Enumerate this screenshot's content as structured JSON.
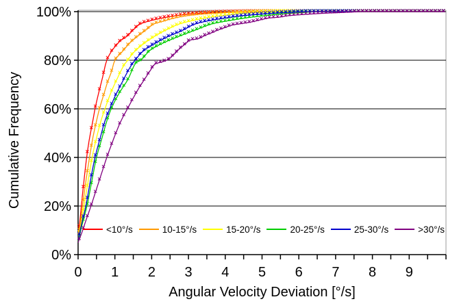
{
  "chart_data": {
    "type": "line",
    "title": "",
    "xlabel": "Angular Velocity Deviation [°/s]",
    "ylabel": "Cumulative Frequency",
    "xlim": [
      0,
      10
    ],
    "ylim": [
      0,
      100
    ],
    "x_tick_values": [
      0,
      1,
      2,
      3,
      4,
      5,
      6,
      7,
      8,
      9
    ],
    "x_minor_tick_step": 0.5,
    "y_tick_values": [
      0,
      20,
      40,
      60,
      80,
      100
    ],
    "y_tick_labels": [
      "0%",
      "20%",
      "40%",
      "60%",
      "80%",
      "100%"
    ],
    "grid": "horizontal-only",
    "legend_position": "inside-bottom",
    "marker": "x",
    "marker_step": 0.11,
    "axis_color": "#000000",
    "gridline_color": "#000000",
    "plot_border_color": "#9a9a9a",
    "series": [
      {
        "name": "<10°/s",
        "color": "#ff0000",
        "points": [
          [
            0,
            8
          ],
          [
            0.05,
            14
          ],
          [
            0.1,
            22
          ],
          [
            0.15,
            29
          ],
          [
            0.2,
            36
          ],
          [
            0.25,
            42
          ],
          [
            0.3,
            47
          ],
          [
            0.4,
            55
          ],
          [
            0.46,
            60
          ],
          [
            0.55,
            66
          ],
          [
            0.65,
            72
          ],
          [
            0.78,
            80
          ],
          [
            0.9,
            83.5
          ],
          [
            1.0,
            85.5
          ],
          [
            1.15,
            88
          ],
          [
            1.34,
            90
          ],
          [
            1.5,
            92.5
          ],
          [
            1.7,
            95
          ],
          [
            1.9,
            96
          ],
          [
            2.1,
            96.8
          ],
          [
            2.4,
            97.7
          ],
          [
            2.7,
            98.4
          ],
          [
            3.0,
            99
          ],
          [
            3.4,
            99.4
          ],
          [
            3.8,
            99.7
          ],
          [
            4.3,
            99.9
          ],
          [
            4.7,
            100
          ],
          [
            10,
            100
          ]
        ]
      },
      {
        "name": "10-15°/s",
        "color": "#ff9900",
        "points": [
          [
            0,
            7
          ],
          [
            0.06,
            13
          ],
          [
            0.12,
            20
          ],
          [
            0.2,
            29
          ],
          [
            0.3,
            39
          ],
          [
            0.4,
            48
          ],
          [
            0.5,
            55
          ],
          [
            0.58,
            60
          ],
          [
            0.7,
            66
          ],
          [
            0.8,
            71
          ],
          [
            0.9,
            75
          ],
          [
            1.0,
            80
          ],
          [
            1.2,
            83.5
          ],
          [
            1.4,
            87
          ],
          [
            1.63,
            90
          ],
          [
            1.85,
            92.5
          ],
          [
            2.07,
            95
          ],
          [
            2.3,
            96
          ],
          [
            2.6,
            97.3
          ],
          [
            3.0,
            98.4
          ],
          [
            3.4,
            99
          ],
          [
            3.9,
            99.5
          ],
          [
            4.5,
            99.8
          ],
          [
            5.0,
            100
          ],
          [
            10,
            100
          ]
        ]
      },
      {
        "name": "15-20°/s",
        "color": "#ffff00",
        "points": [
          [
            0,
            6.5
          ],
          [
            0.08,
            13
          ],
          [
            0.16,
            20
          ],
          [
            0.27,
            30
          ],
          [
            0.38,
            40
          ],
          [
            0.5,
            48
          ],
          [
            0.62,
            55
          ],
          [
            0.73,
            60
          ],
          [
            0.9,
            67
          ],
          [
            1.05,
            72
          ],
          [
            1.25,
            78
          ],
          [
            1.35,
            80
          ],
          [
            1.5,
            83
          ],
          [
            1.8,
            87
          ],
          [
            2.1,
            90
          ],
          [
            2.4,
            92.5
          ],
          [
            2.77,
            95
          ],
          [
            3.1,
            96.3
          ],
          [
            3.5,
            97.5
          ],
          [
            3.9,
            98.4
          ],
          [
            4.4,
            99.2
          ],
          [
            5.0,
            99.7
          ],
          [
            5.6,
            100
          ],
          [
            10,
            100
          ]
        ]
      },
      {
        "name": "20-25°/s",
        "color": "#00cc00",
        "points": [
          [
            0,
            5.5
          ],
          [
            0.12,
            13
          ],
          [
            0.24,
            20
          ],
          [
            0.37,
            30
          ],
          [
            0.5,
            40
          ],
          [
            0.65,
            48
          ],
          [
            0.78,
            55
          ],
          [
            0.9,
            60
          ],
          [
            1.1,
            66
          ],
          [
            1.35,
            72
          ],
          [
            1.58,
            79
          ],
          [
            1.7,
            80
          ],
          [
            1.95,
            84
          ],
          [
            2.3,
            87
          ],
          [
            2.77,
            90
          ],
          [
            3.2,
            92.5
          ],
          [
            3.65,
            95
          ],
          [
            4.1,
            96.3
          ],
          [
            4.6,
            97.5
          ],
          [
            5.1,
            98.4
          ],
          [
            5.6,
            99.1
          ],
          [
            6.0,
            99.5
          ],
          [
            6.5,
            100
          ],
          [
            10,
            100
          ]
        ]
      },
      {
        "name": "25-30°/s",
        "color": "#0000cc",
        "points": [
          [
            0,
            6
          ],
          [
            0.1,
            13
          ],
          [
            0.21,
            20
          ],
          [
            0.33,
            30
          ],
          [
            0.46,
            40
          ],
          [
            0.6,
            48
          ],
          [
            0.73,
            55
          ],
          [
            0.86,
            60
          ],
          [
            1.0,
            65
          ],
          [
            1.2,
            71
          ],
          [
            1.45,
            78
          ],
          [
            1.55,
            80
          ],
          [
            1.75,
            83.5
          ],
          [
            2.1,
            87
          ],
          [
            2.48,
            90
          ],
          [
            2.8,
            92
          ],
          [
            3.2,
            95
          ],
          [
            3.6,
            96.4
          ],
          [
            4.0,
            97.4
          ],
          [
            4.5,
            98.4
          ],
          [
            5.0,
            99
          ],
          [
            5.6,
            99.6
          ],
          [
            6.2,
            100
          ],
          [
            10,
            100
          ]
        ]
      },
      {
        "name": ">30°/s",
        "color": "#800080",
        "points": [
          [
            0,
            5
          ],
          [
            0.1,
            9
          ],
          [
            0.2,
            13.5
          ],
          [
            0.35,
            20
          ],
          [
            0.5,
            27
          ],
          [
            0.65,
            34
          ],
          [
            0.78,
            40
          ],
          [
            0.9,
            45
          ],
          [
            1.0,
            49
          ],
          [
            1.15,
            54.5
          ],
          [
            1.34,
            60
          ],
          [
            1.5,
            64.5
          ],
          [
            1.65,
            68.5
          ],
          [
            1.8,
            72
          ],
          [
            1.95,
            75.5
          ],
          [
            2.1,
            78.5
          ],
          [
            2.3,
            79.4
          ],
          [
            2.45,
            80.3
          ],
          [
            2.6,
            82.3
          ],
          [
            2.75,
            84.6
          ],
          [
            2.9,
            86.5
          ],
          [
            3.05,
            88.3
          ],
          [
            3.25,
            88.8
          ],
          [
            3.45,
            90.2
          ],
          [
            3.6,
            91.1
          ],
          [
            3.8,
            92.4
          ],
          [
            4.0,
            93.5
          ],
          [
            4.2,
            94.5
          ],
          [
            4.45,
            95.1
          ],
          [
            4.7,
            95.7
          ],
          [
            4.95,
            96.6
          ],
          [
            5.2,
            97.4
          ],
          [
            5.45,
            97.7
          ],
          [
            5.7,
            98.3
          ],
          [
            6.0,
            98.7
          ],
          [
            6.3,
            99.0
          ],
          [
            6.7,
            99.35
          ],
          [
            7.1,
            99.6
          ],
          [
            7.4,
            99.8
          ],
          [
            7.75,
            100
          ],
          [
            10,
            100
          ]
        ]
      }
    ]
  }
}
